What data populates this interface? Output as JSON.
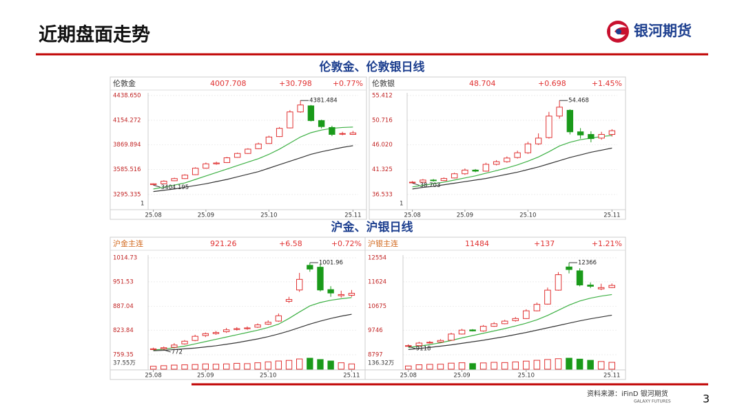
{
  "page": {
    "title": "近期盘面走势",
    "logo": "银河期货",
    "sections": [
      "伦敦金、伦敦银日线",
      "沪金、沪银日线"
    ],
    "source": "资料来源：iFinD 银河期货",
    "source_en": "GALAXY FUTURES",
    "page_number": "3"
  },
  "chart_data": [
    {
      "type": "candlestick",
      "header": [
        "伦敦金",
        "4007.708",
        "+30.798",
        "+0.77%"
      ],
      "ylim": [
        3295.335,
        4438.65
      ],
      "yticks": [
        {
          "value": 4438.65,
          "label": "4438.650"
        },
        4154.272,
        3869.894,
        3585.516,
        3295.335
      ],
      "xticks": [
        {
          "value": 0,
          "label": "25.08"
        },
        {
          "value": 5,
          "label": "25.09"
        },
        {
          "value": 11,
          "label": "25.10"
        },
        {
          "value": 19,
          "label": "25.11"
        }
      ],
      "volume_label": "1",
      "open": [
        3410,
        3420,
        3455,
        3480,
        3525,
        3600,
        3650,
        3665,
        3725,
        3770,
        3825,
        3885,
        3965,
        4065,
        4250,
        4320,
        4150,
        4070,
        3995,
        3990
      ],
      "close": [
        3420,
        3450,
        3480,
        3520,
        3600,
        3650,
        3660,
        3720,
        3770,
        3820,
        3880,
        3960,
        4060,
        4250,
        4330,
        4150,
        4080,
        3990,
        4000,
        4007.708
      ],
      "high": [
        3425,
        3460,
        3490,
        3530,
        3610,
        3665,
        3675,
        3730,
        3780,
        3830,
        3895,
        3975,
        4075,
        4270,
        4381.484,
        4330,
        4160,
        4090,
        4020,
        4030
      ],
      "low": [
        3404.195,
        3415,
        3450,
        3475,
        3520,
        3595,
        3640,
        3660,
        3720,
        3765,
        3820,
        3880,
        3960,
        4060,
        4240,
        4140,
        4060,
        3970,
        3980,
        3985
      ],
      "series": [
        {
          "color": "#333333",
          "values": [
            3330,
            3345,
            3360,
            3380,
            3400,
            3420,
            3445,
            3470,
            3500,
            3530,
            3560,
            3600,
            3640,
            3680,
            3720,
            3760,
            3790,
            3815,
            3840,
            3860
          ]
        },
        {
          "color": "#3cb043",
          "values": [
            3360,
            3380,
            3405,
            3430,
            3470,
            3510,
            3550,
            3590,
            3630,
            3670,
            3710,
            3760,
            3820,
            3890,
            3960,
            4010,
            4040,
            4060,
            4070,
            4075
          ]
        }
      ]
    },
    {
      "type": "candlestick",
      "header": [
        "伦敦银",
        "48.704",
        "+0.698",
        "+1.45%"
      ],
      "ylim": [
        36.533,
        55.412
      ],
      "yticks": [
        55.412,
        50.716,
        {
          "value": 46.02,
          "label": "46.020"
        },
        41.325,
        36.533
      ],
      "xticks": [
        {
          "value": 0,
          "label": "25.08"
        },
        {
          "value": 5,
          "label": "25.09"
        },
        {
          "value": 11,
          "label": "25.10"
        },
        {
          "value": 19,
          "label": "25.11"
        }
      ],
      "volume_label": "1",
      "open": [
        38.8,
        38.9,
        39.3,
        39.2,
        39.7,
        40.5,
        41.2,
        41.0,
        42.3,
        42.8,
        43.6,
        44.5,
        46.2,
        47.4,
        51.5,
        52.6,
        48.5,
        48.0,
        47.3,
        48.0
      ],
      "close": [
        38.9,
        39.3,
        39.2,
        39.6,
        40.5,
        41.2,
        41.0,
        42.3,
        42.8,
        43.5,
        44.5,
        46.2,
        47.3,
        51.5,
        53.2,
        48.5,
        47.9,
        47.2,
        48.0,
        48.704
      ],
      "high": [
        39.1,
        39.5,
        39.5,
        39.8,
        40.7,
        41.5,
        41.4,
        42.6,
        43.1,
        43.8,
        44.9,
        46.6,
        48.2,
        52.3,
        54.468,
        52.8,
        49.2,
        48.6,
        48.5,
        49.0
      ],
      "low": [
        38.703,
        38.8,
        39.0,
        39.1,
        39.6,
        40.3,
        40.8,
        40.9,
        42.1,
        42.6,
        43.4,
        44.3,
        46.0,
        47.2,
        51.0,
        48.0,
        47.2,
        46.5,
        47.0,
        47.6
      ],
      "series": [
        {
          "color": "#333333",
          "values": [
            37.6,
            37.9,
            38.1,
            38.4,
            38.7,
            39.0,
            39.3,
            39.6,
            40.0,
            40.4,
            40.8,
            41.3,
            41.8,
            42.4,
            43.0,
            43.6,
            44.1,
            44.6,
            45.0,
            45.4
          ]
        },
        {
          "color": "#3cb043",
          "values": [
            38.0,
            38.3,
            38.6,
            38.9,
            39.3,
            39.7,
            40.1,
            40.6,
            41.1,
            41.6,
            42.2,
            42.9,
            43.7,
            44.7,
            45.8,
            46.5,
            47.0,
            47.3,
            47.6,
            47.8
          ]
        }
      ]
    },
    {
      "type": "candlestick",
      "header": [
        "沪金主连",
        "921.26",
        "+6.58",
        "+0.72%"
      ],
      "ylim": [
        759.35,
        1014.73
      ],
      "yticks": [
        1014.73,
        951.53,
        887.04,
        823.84,
        759.35
      ],
      "xticks": [
        {
          "value": 0,
          "label": "25.08"
        },
        {
          "value": 5,
          "label": "25.09"
        },
        {
          "value": 11,
          "label": "25.10"
        },
        {
          "value": 19,
          "label": "25.11"
        }
      ],
      "volume_label": "37.55万",
      "volume_lim": [
        0,
        37.55
      ],
      "volume": [
        10,
        12,
        14,
        15,
        16,
        18,
        17,
        18,
        20,
        19,
        22,
        25,
        28,
        30,
        35,
        37.55,
        33,
        28,
        22,
        18
      ],
      "open": [
        773,
        775,
        779,
        788,
        797,
        810,
        815,
        820,
        826,
        828,
        832,
        840,
        848,
        900,
        930,
        995,
        990,
        931,
        915,
        916
      ],
      "close": [
        775,
        778,
        785,
        795,
        808,
        815,
        818,
        825,
        828,
        830,
        838,
        845,
        862,
        905,
        958,
        985,
        930,
        922,
        918,
        921.26
      ],
      "high": [
        778,
        781,
        790,
        798,
        812,
        818,
        822,
        830,
        832,
        834,
        842,
        850,
        868,
        912,
        975,
        1001.96,
        998,
        940,
        928,
        930
      ],
      "low": [
        772.12,
        772,
        776,
        786,
        795,
        806,
        812,
        817,
        823,
        825,
        830,
        838,
        846,
        896,
        925,
        978,
        926,
        912,
        910,
        912
      ],
      "series": [
        {
          "color": "#333333",
          "values": [
            770,
            771,
            773,
            775,
            777,
            780,
            783,
            787,
            791,
            796,
            801,
            807,
            814,
            822,
            831,
            840,
            848,
            855,
            861,
            866
          ]
        },
        {
          "color": "#3cb043",
          "values": [
            772,
            774,
            778,
            782,
            788,
            794,
            800,
            806,
            812,
            818,
            824,
            831,
            840,
            855,
            872,
            888,
            897,
            903,
            907,
            910
          ]
        }
      ]
    },
    {
      "type": "candlestick",
      "header": [
        "沪银主连",
        "11484",
        "+137",
        "+1.21%"
      ],
      "ylim": [
        8797,
        12554
      ],
      "yticks": [
        12554,
        11624,
        10675,
        9746,
        8797
      ],
      "xticks": [
        {
          "value": 0,
          "label": "25.08"
        },
        {
          "value": 5,
          "label": "25.09"
        },
        {
          "value": 11,
          "label": "25.10"
        },
        {
          "value": 19,
          "label": "25.11"
        }
      ],
      "volume_label": "136.32万",
      "volume_lim": [
        0,
        136.32
      ],
      "volume": [
        40,
        55,
        60,
        62,
        75,
        80,
        70,
        78,
        85,
        82,
        90,
        100,
        110,
        120,
        130,
        136.32,
        125,
        110,
        95,
        85
      ],
      "open": [
        9130,
        9150,
        9260,
        9290,
        9360,
        9600,
        9760,
        9720,
        9900,
        10000,
        10120,
        10200,
        10500,
        10760,
        11300,
        12200,
        12050,
        11500,
        11350,
        11400
      ],
      "close": [
        9150,
        9250,
        9280,
        9350,
        9600,
        9750,
        9720,
        9900,
        10000,
        10100,
        10200,
        10500,
        10750,
        11300,
        11900,
        12100,
        11500,
        11450,
        11400,
        11484
      ],
      "high": [
        9200,
        9300,
        9330,
        9400,
        9650,
        9800,
        9790,
        9950,
        10060,
        10150,
        10260,
        10560,
        10820,
        11400,
        12000,
        12366,
        12150,
        11600,
        11550,
        11560
      ],
      "low": [
        9118,
        9120,
        9230,
        9270,
        9340,
        9580,
        9700,
        9690,
        9880,
        9980,
        10080,
        10180,
        10480,
        10740,
        11280,
        11950,
        11450,
        11380,
        11300,
        11380
      ],
      "series": [
        {
          "color": "#333333",
          "values": [
            9000,
            9040,
            9080,
            9130,
            9180,
            9240,
            9300,
            9360,
            9430,
            9500,
            9580,
            9660,
            9750,
            9840,
            9930,
            10020,
            10110,
            10190,
            10260,
            10330
          ]
        },
        {
          "color": "#3cb043",
          "values": [
            9080,
            9130,
            9190,
            9260,
            9350,
            9450,
            9540,
            9630,
            9720,
            9810,
            9910,
            10020,
            10150,
            10320,
            10520,
            10720,
            10880,
            10990,
            11070,
            11130
          ]
        }
      ]
    }
  ]
}
